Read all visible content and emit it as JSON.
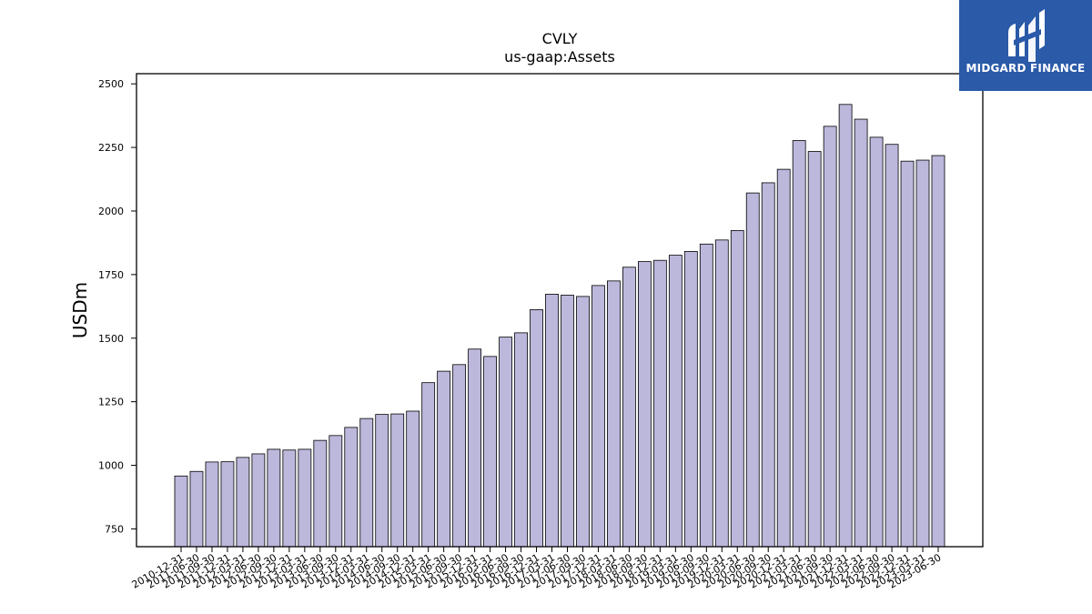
{
  "logo": {
    "text": "MIDGARD FINANCE"
  },
  "chart_data": {
    "type": "bar",
    "title": "CVLY",
    "subtitle": "us-gaap:Assets",
    "xlabel": "",
    "ylabel": "USDm",
    "ylim": [
      680,
      2540
    ],
    "yticks": [
      750,
      1000,
      1250,
      1500,
      1750,
      2000,
      2250,
      2500
    ],
    "grid": false,
    "bar_color": "#bcb8dc",
    "edge_color": "#000000",
    "categories": [
      "2010-12-31",
      "2011-06-30",
      "2011-09-30",
      "2011-12-31",
      "2012-03-31",
      "2012-06-30",
      "2012-09-30",
      "2012-12-31",
      "2013-03-31",
      "2013-06-30",
      "2013-09-30",
      "2013-12-31",
      "2014-03-31",
      "2014-06-30",
      "2014-09-30",
      "2014-12-31",
      "2015-03-31",
      "2015-06-30",
      "2015-09-30",
      "2015-12-31",
      "2016-03-31",
      "2016-06-30",
      "2016-09-30",
      "2016-12-31",
      "2017-03-31",
      "2017-06-30",
      "2017-09-30",
      "2017-12-31",
      "2018-03-31",
      "2018-06-30",
      "2018-09-30",
      "2018-12-31",
      "2019-03-31",
      "2019-06-30",
      "2019-09-30",
      "2019-12-31",
      "2020-03-31",
      "2020-06-30",
      "2020-09-30",
      "2020-12-31",
      "2021-03-31",
      "2021-06-30",
      "2021-09-30",
      "2021-12-31",
      "2022-03-31",
      "2022-06-30",
      "2022-09-30",
      "2022-12-31",
      "2023-03-31",
      "2023-06-30"
    ],
    "values": [
      958,
      976,
      1013,
      1014,
      1031,
      1045,
      1063,
      1060,
      1063,
      1098,
      1117,
      1149,
      1184,
      1200,
      1202,
      1213,
      1325,
      1370,
      1396,
      1457,
      1428,
      1504,
      1521,
      1612,
      1673,
      1669,
      1664,
      1707,
      1725,
      1779,
      1801,
      1806,
      1826,
      1841,
      1870,
      1886,
      1923,
      2071,
      2111,
      2164,
      2277,
      2234,
      2333,
      2419,
      2361,
      2290,
      2262,
      2196,
      2200,
      2218
    ]
  }
}
